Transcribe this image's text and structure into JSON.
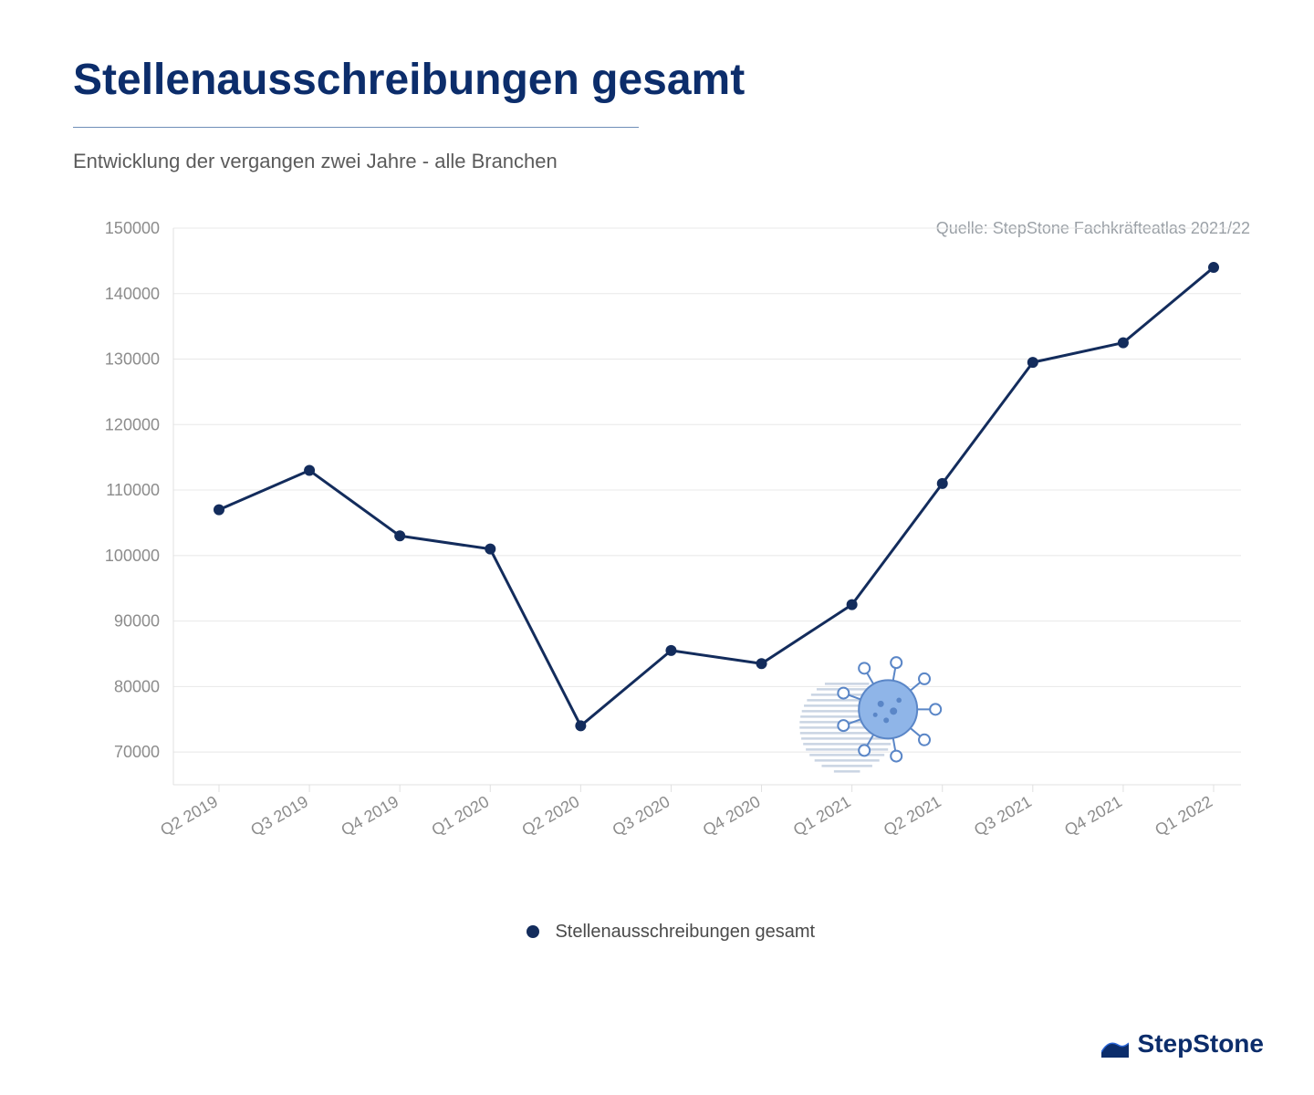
{
  "header": {
    "title": "Stellenausschreibungen gesamt",
    "subtitle": "Entwicklung der vergangen zwei Jahre - alle Branchen",
    "title_color": "#0c2d6b",
    "divider_color": "#6f8fb8"
  },
  "source": {
    "label": "Quelle: StepStone Fachkräfteatlas 2021/22"
  },
  "chart": {
    "type": "line",
    "categories": [
      "Q2 2019",
      "Q3 2019",
      "Q4 2019",
      "Q1 2020",
      "Q2 2020",
      "Q3 2020",
      "Q4 2020",
      "Q1 2021",
      "Q2 2021",
      "Q3 2021",
      "Q4 2021",
      "Q1 2022"
    ],
    "values": [
      107000,
      113000,
      103000,
      101000,
      74000,
      85500,
      83500,
      92500,
      111000,
      129500,
      132500,
      144000
    ],
    "ylim": [
      65000,
      150000
    ],
    "yticks": [
      70000,
      80000,
      90000,
      100000,
      110000,
      120000,
      130000,
      140000,
      150000
    ],
    "line_color": "#132c5c",
    "line_width": 3,
    "marker_radius": 6,
    "marker_fill": "#132c5c",
    "grid_color": "#e8e8e8",
    "grid_width": 1,
    "axis_color": "#e0e0e0",
    "tick_label_color": "#8c8c8c",
    "tick_fontsize": 18,
    "xlabel_fontsize": 18,
    "legend_label": "Stellenausschreibungen gesamt",
    "virus_annotation": {
      "between_index": 7,
      "color_fill": "#8fb5e8",
      "color_stroke": "#5a86c7"
    }
  },
  "brand": {
    "name": "StepStone",
    "color": "#0c2d6b"
  }
}
